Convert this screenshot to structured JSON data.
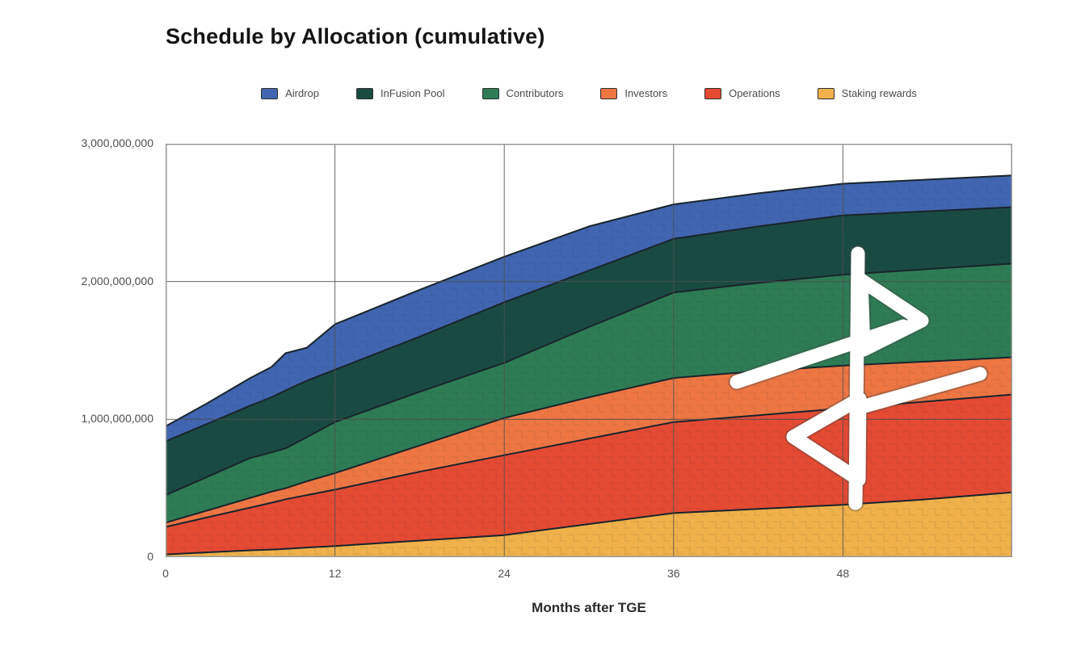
{
  "title": "Schedule by Allocation (cumulative)",
  "x_axis_title": "Months after TGE",
  "legend": [
    {
      "label": "Airdrop",
      "color": "#4165b0"
    },
    {
      "label": "InFusion Pool",
      "color": "#1a4b42"
    },
    {
      "label": "Contributors",
      "color": "#2e7c55"
    },
    {
      "label": "Investors",
      "color": "#ee7643"
    },
    {
      "label": "Operations",
      "color": "#e54a33"
    },
    {
      "label": "Staking rewards",
      "color": "#f0b14b"
    }
  ],
  "colors": {
    "border": "#979797",
    "gridline": "#4f4f4f",
    "band_outline": "#19242b",
    "watermark": "#ffffff",
    "title_text": "#141414",
    "tick_text": "#4f4f4f"
  },
  "chart_data": {
    "type": "area",
    "stacked": true,
    "title": "Schedule by Allocation (cumulative)",
    "xlabel": "Months after TGE",
    "ylabel": "",
    "xlim": [
      0,
      60
    ],
    "ylim": [
      0,
      3000000000
    ],
    "grid": true,
    "legend_position": "top",
    "x_tick_values": [
      0,
      12,
      24,
      36,
      48
    ],
    "x_tick_labels": [
      "0",
      "12",
      "24",
      "36",
      "48"
    ],
    "y_tick_values": [
      0,
      1000000000,
      2000000000,
      3000000000
    ],
    "y_tick_labels": [
      "0",
      "1,000,000,000",
      "2,000,000,000",
      "3,000,000,000"
    ],
    "months": [
      0,
      3,
      6,
      7.5,
      8.5,
      10,
      12,
      18,
      24,
      30,
      36,
      42,
      48,
      54,
      60
    ],
    "series": [
      {
        "name": "Staking rewards",
        "color": "#f0b14b",
        "values": [
          20000000,
          35000000,
          50000000,
          55000000,
          60000000,
          70000000,
          80000000,
          120000000,
          160000000,
          240000000,
          320000000,
          350000000,
          380000000,
          420000000,
          470000000
        ]
      },
      {
        "name": "Operations",
        "color": "#e54a33",
        "values": [
          200000000,
          255000000,
          310000000,
          340000000,
          360000000,
          380000000,
          410000000,
          500000000,
          580000000,
          620000000,
          660000000,
          680000000,
          700000000,
          710000000,
          710000000
        ]
      },
      {
        "name": "Investors",
        "color": "#ee7643",
        "values": [
          30000000,
          50000000,
          70000000,
          80000000,
          80000000,
          100000000,
          120000000,
          190000000,
          270000000,
          300000000,
          320000000,
          320000000,
          310000000,
          290000000,
          270000000
        ]
      },
      {
        "name": "Contributors",
        "color": "#2e7c55",
        "values": [
          200000000,
          245000000,
          290000000,
          285000000,
          290000000,
          320000000,
          370000000,
          390000000,
          400000000,
          510000000,
          620000000,
          640000000,
          660000000,
          670000000,
          680000000
        ]
      },
      {
        "name": "InFusion Pool",
        "color": "#1a4b42",
        "values": [
          390000000,
          385000000,
          380000000,
          400000000,
          420000000,
          410000000,
          380000000,
          400000000,
          440000000,
          410000000,
          390000000,
          410000000,
          430000000,
          420000000,
          410000000
        ]
      },
      {
        "name": "Airdrop",
        "color": "#4165b0",
        "values": [
          110000000,
          150000000,
          200000000,
          220000000,
          270000000,
          240000000,
          330000000,
          340000000,
          330000000,
          320000000,
          250000000,
          240000000,
          230000000,
          230000000,
          230000000
        ]
      }
    ]
  },
  "watermark": {
    "description": "white brand glyph overlay (two triangles with diagonal strokes)"
  }
}
